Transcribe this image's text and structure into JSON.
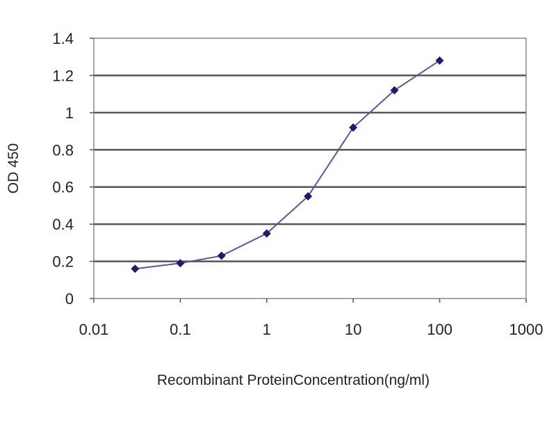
{
  "chart_data": {
    "type": "line",
    "title": "",
    "xlabel": "Recombinant ProteinConcentration(ng/ml)",
    "ylabel": "OD 450",
    "x_scale": "log",
    "xlim": [
      0.01,
      1000
    ],
    "ylim": [
      0,
      1.4
    ],
    "x_ticks": [
      "0.01",
      "0.1",
      "1",
      "10",
      "100",
      "1000"
    ],
    "x_tick_values": [
      0.01,
      0.1,
      1,
      10,
      100,
      1000
    ],
    "y_ticks": [
      "0",
      "0.2",
      "0.4",
      "0.6",
      "0.8",
      "1",
      "1.2",
      "1.4"
    ],
    "y_tick_values": [
      0,
      0.2,
      0.4,
      0.6,
      0.8,
      1,
      1.2,
      1.4
    ],
    "grid": "horizontal",
    "legend": "none",
    "series": [
      {
        "x": [
          0.03,
          0.1,
          0.3,
          1,
          3,
          10,
          30,
          100
        ],
        "y": [
          0.16,
          0.19,
          0.23,
          0.35,
          0.55,
          0.92,
          1.12,
          1.28
        ],
        "color": "#1a1a7a",
        "line_color": "#5555aa",
        "marker": "diamond"
      }
    ]
  }
}
